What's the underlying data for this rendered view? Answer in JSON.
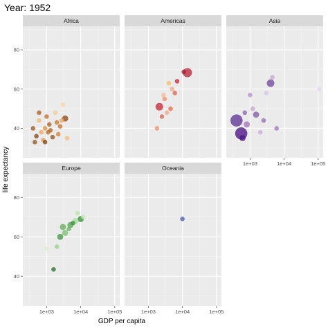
{
  "chart_data": {
    "type": "scatter",
    "title": "Year: 1952",
    "xlabel": "GDP per capita",
    "ylabel": "life expectancy",
    "x_scale": "log10",
    "xlim": [
      200,
      140000
    ],
    "ylim": [
      25,
      92
    ],
    "x_ticks": [
      1000,
      10000,
      100000
    ],
    "x_tick_labels": [
      "1e+03",
      "1e+04",
      "1e+05"
    ],
    "y_ticks": [
      40,
      60,
      80
    ],
    "y_tick_labels": [
      "40",
      "60",
      "80"
    ],
    "grid": true,
    "panels": [
      {
        "name": "Africa",
        "points": [
          {
            "x": 1500,
            "y": 35.5,
            "size": 1.5,
            "color": "#8c4b0e"
          },
          {
            "x": 3500,
            "y": 45,
            "size": 2,
            "color": "#8a3d06"
          },
          {
            "x": 2000,
            "y": 43,
            "size": 1.5,
            "color": "#c8701e"
          },
          {
            "x": 900,
            "y": 40,
            "size": 1.5,
            "color": "#d38a3c"
          },
          {
            "x": 1200,
            "y": 42,
            "size": 1.5,
            "color": "#a55814"
          },
          {
            "x": 700,
            "y": 38,
            "size": 1.5,
            "color": "#e7a45a"
          },
          {
            "x": 500,
            "y": 36,
            "size": 1.5,
            "color": "#7a3c10"
          },
          {
            "x": 1100,
            "y": 38,
            "size": 1.5,
            "color": "#b9651c"
          },
          {
            "x": 600,
            "y": 44,
            "size": 1.5,
            "color": "#f0b876"
          },
          {
            "x": 2500,
            "y": 41,
            "size": 1.5,
            "color": "#c46a20"
          },
          {
            "x": 400,
            "y": 40,
            "size": 1.5,
            "color": "#9a4c12"
          },
          {
            "x": 800,
            "y": 34,
            "size": 1.5,
            "color": "#e09650"
          },
          {
            "x": 1800,
            "y": 48,
            "size": 1.5,
            "color": "#f5c88c"
          },
          {
            "x": 600,
            "y": 48,
            "size": 1.5,
            "color": "#a85414"
          },
          {
            "x": 3000,
            "y": 52,
            "size": 1.5,
            "color": "#fad39a"
          },
          {
            "x": 2200,
            "y": 37,
            "size": 1.5,
            "color": "#d57e2a"
          },
          {
            "x": 1000,
            "y": 46,
            "size": 1.5,
            "color": "#c46a20"
          },
          {
            "x": 450,
            "y": 33,
            "size": 1.5,
            "color": "#8c4b0e"
          },
          {
            "x": 4000,
            "y": 35,
            "size": 1.5,
            "color": "#f2bd7c"
          },
          {
            "x": 1300,
            "y": 39,
            "size": 1.5,
            "color": "#b05c16"
          },
          {
            "x": 900,
            "y": 33,
            "size": 1.5,
            "color": "#7a3c10"
          },
          {
            "x": 2800,
            "y": 44,
            "size": 1.5,
            "color": "#e9a25a"
          }
        ]
      },
      {
        "name": "Americas",
        "points": [
          {
            "x": 13990,
            "y": 68.4,
            "size": 3,
            "color": "#b2182b"
          },
          {
            "x": 5000,
            "y": 60,
            "size": 1.5,
            "color": "#f4a582"
          },
          {
            "x": 3000,
            "y": 55,
            "size": 1.5,
            "color": "#ef8a62"
          },
          {
            "x": 2100,
            "y": 51,
            "size": 2.5,
            "color": "#c51b2e"
          },
          {
            "x": 4000,
            "y": 63,
            "size": 1.5,
            "color": "#fdb863"
          },
          {
            "x": 6000,
            "y": 58,
            "size": 1.5,
            "color": "#e05a48"
          },
          {
            "x": 2500,
            "y": 46,
            "size": 1.5,
            "color": "#d6604d"
          },
          {
            "x": 3500,
            "y": 48,
            "size": 1.5,
            "color": "#f4a582"
          },
          {
            "x": 1800,
            "y": 40,
            "size": 1.5,
            "color": "#ef8a62"
          },
          {
            "x": 7000,
            "y": 64,
            "size": 1.5,
            "color": "#c41f35"
          },
          {
            "x": 2800,
            "y": 57,
            "size": 1.5,
            "color": "#f7b89a"
          },
          {
            "x": 4500,
            "y": 50,
            "size": 1.5,
            "color": "#e6654a"
          },
          {
            "x": 11000,
            "y": 68.8,
            "size": 1.5,
            "color": "#9e1a30"
          }
        ]
      },
      {
        "name": "Asia",
        "points": [
          {
            "x": 400,
            "y": 44,
            "size": 4,
            "color": "#54278f"
          },
          {
            "x": 550,
            "y": 37.4,
            "size": 4,
            "color": "#3f007d"
          },
          {
            "x": 4000,
            "y": 63,
            "size": 2.5,
            "color": "#6a3d9a"
          },
          {
            "x": 800,
            "y": 42,
            "size": 2,
            "color": "#9e6ab5"
          },
          {
            "x": 1500,
            "y": 47,
            "size": 2,
            "color": "#7b4fa0"
          },
          {
            "x": 1200,
            "y": 50,
            "size": 1.5,
            "color": "#c2a5cf"
          },
          {
            "x": 2500,
            "y": 44,
            "size": 1.5,
            "color": "#8e63b0"
          },
          {
            "x": 600,
            "y": 35,
            "size": 2,
            "color": "#4a1486"
          },
          {
            "x": 3000,
            "y": 58,
            "size": 1.5,
            "color": "#d8c3e6"
          },
          {
            "x": 1000,
            "y": 57,
            "size": 1.5,
            "color": "#b48cc8"
          },
          {
            "x": 108000,
            "y": 60,
            "size": 1.5,
            "color": "#e5d6ee"
          },
          {
            "x": 6000,
            "y": 40,
            "size": 1.5,
            "color": "#9c70b8"
          },
          {
            "x": 2000,
            "y": 38,
            "size": 1.5,
            "color": "#c7a9d8"
          },
          {
            "x": 700,
            "y": 48,
            "size": 1.5,
            "color": "#8a5da8"
          },
          {
            "x": 4500,
            "y": 66,
            "size": 1.5,
            "color": "#c2a5cf"
          }
        ]
      },
      {
        "name": "Europe",
        "points": [
          {
            "x": 10000,
            "y": 69,
            "size": 2,
            "color": "#2d8a2d"
          },
          {
            "x": 5000,
            "y": 66,
            "size": 2,
            "color": "#4ba14b"
          },
          {
            "x": 3500,
            "y": 62,
            "size": 2,
            "color": "#73c06a"
          },
          {
            "x": 2500,
            "y": 60,
            "size": 2,
            "color": "#3c8f3c"
          },
          {
            "x": 7000,
            "y": 68,
            "size": 2,
            "color": "#a8dd9a"
          },
          {
            "x": 1600,
            "y": 43.5,
            "size": 1.5,
            "color": "#1e6e1e"
          },
          {
            "x": 1000,
            "y": 54,
            "size": 1.5,
            "color": "#d6f0c5"
          },
          {
            "x": 3000,
            "y": 65,
            "size": 2,
            "color": "#5aa94f"
          },
          {
            "x": 8000,
            "y": 72,
            "size": 1.5,
            "color": "#b7e3a8"
          },
          {
            "x": 12000,
            "y": 70,
            "size": 1.5,
            "color": "#c4e8b2"
          },
          {
            "x": 4500,
            "y": 64,
            "size": 1.5,
            "color": "#66b05a"
          },
          {
            "x": 2000,
            "y": 55,
            "size": 1.5,
            "color": "#94cf82"
          },
          {
            "x": 6000,
            "y": 67,
            "size": 1.5,
            "color": "#368f36"
          }
        ]
      },
      {
        "name": "Oceania",
        "points": [
          {
            "x": 10000,
            "y": 69.1,
            "size": 1.5,
            "color": "#3b52a4"
          }
        ]
      }
    ]
  }
}
